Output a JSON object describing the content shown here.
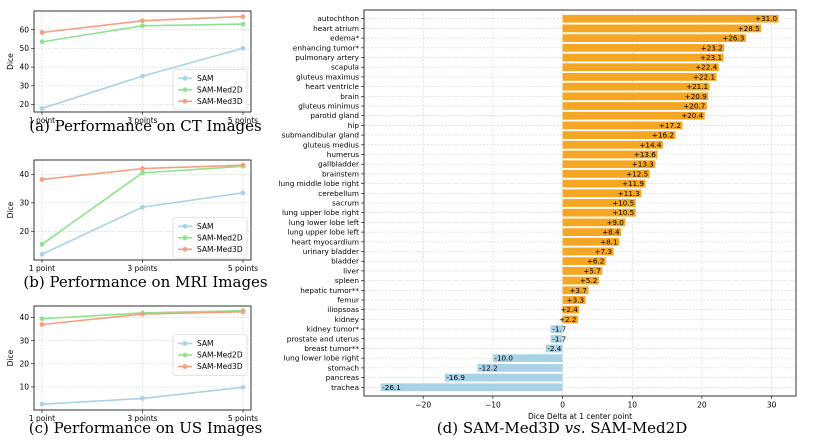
{
  "colors": {
    "SAM": "#a8d3e6",
    "SAM-Med2D": "#8fe38f",
    "SAM-Med3D": "#f4a07f",
    "positive": "#f5a623",
    "negative": "#a8d3e6"
  },
  "chart_data": [
    {
      "type": "line",
      "title": "",
      "caption": "(a) Performance on CT Images",
      "xlabel": "",
      "ylabel": "Dice",
      "categories": [
        "1 point",
        "3 points",
        "5 points"
      ],
      "yticks": [
        20,
        30,
        40,
        50,
        60
      ],
      "ylim": [
        16,
        70
      ],
      "legend": "lower-right",
      "grid": true,
      "series": [
        {
          "name": "SAM",
          "values": [
            17.9,
            35.2,
            50.1
          ]
        },
        {
          "name": "SAM-Med2D",
          "values": [
            53.5,
            62.1,
            63.0
          ]
        },
        {
          "name": "SAM-Med3D",
          "values": [
            58.5,
            64.8,
            67.0
          ]
        }
      ]
    },
    {
      "type": "line",
      "title": "",
      "caption": "(b) Performance on MRI Images",
      "xlabel": "",
      "ylabel": "Dice",
      "categories": [
        "1 point",
        "3 points",
        "5 points"
      ],
      "yticks": [
        20,
        30,
        40
      ],
      "ylim": [
        10,
        45
      ],
      "legend": "lower-right",
      "grid": true,
      "series": [
        {
          "name": "SAM",
          "values": [
            12.0,
            28.5,
            33.5
          ]
        },
        {
          "name": "SAM-Med2D",
          "values": [
            15.5,
            40.5,
            42.8
          ]
        },
        {
          "name": "SAM-Med3D",
          "values": [
            38.2,
            42.0,
            43.2
          ]
        }
      ]
    },
    {
      "type": "line",
      "title": "",
      "caption": "(c) Performance on US Images",
      "xlabel": "",
      "ylabel": "Dice",
      "categories": [
        "1 point",
        "3 points",
        "5 points"
      ],
      "yticks": [
        10,
        20,
        30,
        40
      ],
      "ylim": [
        0,
        45
      ],
      "legend": "center-right",
      "grid": true,
      "series": [
        {
          "name": "SAM",
          "values": [
            2.5,
            5.0,
            9.8
          ]
        },
        {
          "name": "SAM-Med2D",
          "values": [
            39.5,
            42.0,
            43.0
          ]
        },
        {
          "name": "SAM-Med3D",
          "values": [
            37.0,
            41.5,
            42.5
          ]
        }
      ]
    },
    {
      "type": "bar",
      "orientation": "horizontal",
      "title": "",
      "caption_prefix": "(d) SAM-Med3D ",
      "caption_italic": "vs.",
      "caption_suffix": " SAM-Med2D",
      "xlabel": "Dice Delta at 1 center point",
      "ylabel": "",
      "xticks": [
        -20,
        -10,
        0,
        10,
        20,
        30
      ],
      "xlim": [
        -28.5,
        33.5
      ],
      "grid": true,
      "categories": [
        "autochthon",
        "heart atrium",
        "edema*",
        "enhancing tumor*",
        "pulmonary artery",
        "scapula",
        "gluteus maximus",
        "heart ventricle",
        "brain",
        "gluteus minimus",
        "parotid gland",
        "hip",
        "submandibular gland",
        "gluteus medius",
        "humerus",
        "gallbladder",
        "brainstem",
        "lung middle lobe right",
        "cerebellum",
        "sacrum",
        "lung upper lobe right",
        "lung lower lobe left",
        "lung upper lobe left",
        "heart myocardium",
        "urinary bladder",
        "bladder",
        "liver",
        "spleen",
        "hepatic tumor**",
        "femur",
        "iliopsoas",
        "kidney",
        "kidney tumor*",
        "prostate and uterus",
        "breast tumor**",
        "lung lower lobe right",
        "stomach",
        "pancreas",
        "trachea"
      ],
      "values": [
        31.0,
        28.5,
        26.3,
        23.2,
        23.1,
        22.4,
        22.1,
        21.1,
        20.9,
        20.7,
        20.4,
        17.2,
        16.2,
        14.4,
        13.6,
        13.3,
        12.5,
        11.9,
        11.3,
        10.5,
        10.5,
        9.0,
        8.4,
        8.1,
        7.3,
        6.2,
        5.7,
        5.2,
        3.7,
        3.3,
        2.4,
        2.2,
        -1.7,
        -1.7,
        -2.4,
        -10.0,
        -12.2,
        -16.9,
        -26.1
      ],
      "labels": [
        "+31.0",
        "+28.5",
        "+26.3",
        "+23.2",
        "+23.1",
        "+22.4",
        "+22.1",
        "+21.1",
        "+20.9",
        "+20.7",
        "+20.4",
        "+17.2",
        "+16.2",
        "+14.4",
        "+13.6",
        "+13.3",
        "+12.5",
        "+11.9",
        "+11.3",
        "+10.5",
        "+10.5",
        "+9.0",
        "+8.4",
        "+8.1",
        "+7.3",
        "+6.2",
        "+5.7",
        "+5.2",
        "+3.7",
        "+3.3",
        "+2.4",
        "+2.2",
        "-1.7",
        "-1.7",
        "-2.4",
        "-10.0",
        "-12.2",
        "-16.9",
        "-26.1"
      ]
    }
  ]
}
